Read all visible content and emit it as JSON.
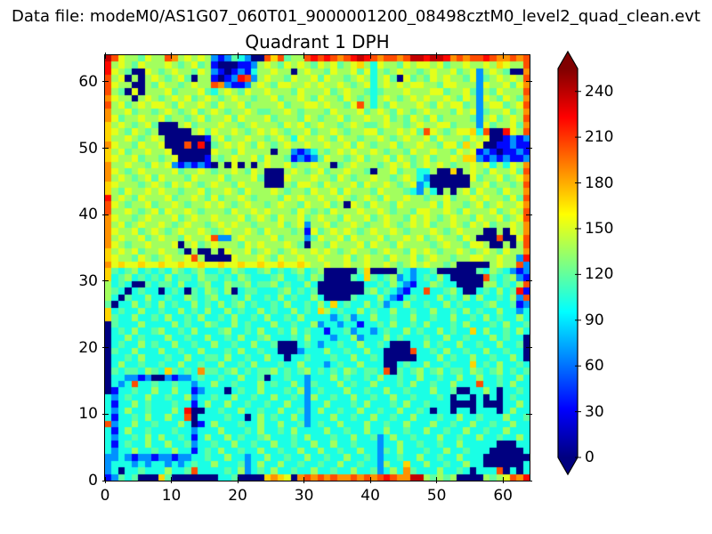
{
  "figure": {
    "data_file_label": "Data file: modeM0/AS1G07_060T01_9000001200_08498cztM0_level2_quad_clean.evt",
    "background": "#ffffff",
    "text_color": "#000000"
  },
  "chart_data": {
    "type": "heatmap",
    "title": "Quadrant 1 DPH",
    "xlabel": "",
    "ylabel": "",
    "x_range": [
      0,
      64
    ],
    "y_range": [
      0,
      64
    ],
    "x_ticks": [
      0,
      10,
      20,
      30,
      40,
      50,
      60
    ],
    "y_ticks": [
      0,
      10,
      20,
      30,
      40,
      50,
      60
    ],
    "grid": false,
    "colormap": "jet",
    "value_range": [
      0,
      255
    ],
    "value_per_hex_digit": 17,
    "colorbar": {
      "ticks": [
        0,
        30,
        60,
        90,
        120,
        150,
        180,
        210,
        240
      ],
      "extend": "both",
      "under_color": "#000080",
      "over_color": "#800000"
    },
    "grid_hex_rows_top_to_bottom": [
      "ec9887988cb8989842476400cac788cdcdcbcdedcbccbceedeedbcbccdcbbcbc",
      "d8987988898789782000224898798987989789a86988798998978898898a988c",
      "d98700987898879842024268898808988798897968789887898897894898700b",
      "c89080898789708820 24dc489887988979887898689709787989887947898 98c",
      "c988008798878988cb4224898799889898898789689898998879988 84988979b",
      "c870908889788897689879889888798889789887678889888997889748 79888c",
      "b988089878989789878988788978898798879878689878989889879849 87987b",
      "c897898998798898798897888897889989887 9c8687988898798997848 99789c",
      "b889788789878978987889877889878887988897898798789888798947 88978b",
      "b978898897887897889798889788879878897889889787987978888748 97898c",
      "a898789700089788898878988879897898878987789887898899788849 78897b",
      "a987987800000897988987898987889788987889978898 97c987899a6c00d98c",
      "a889878980000002897889887898698898798878898789889798887989002424",
      "b98879889000c0d0789898798789889889889798788978898879 97a890022422",
      "a897889889000000988798888088424687898988987887988988798924202242",
      "a988978878900002878988979887242479887897889798789788 98aa42424224",
      "b889887989424242080908089889788988078988878989789898788989 68698b",
      "b987898888978898788987980008987897889887088978866800a08987 98897c",
      "b898789798887988897888970009888988798788988789864000000978 89789b",
      "a988878987989878988798880008799879888979889878946000000889 78878c",
      "a879889898878897889879888987887988979888798887648608089798 87988b",
      "d898798889788987978898788879898898898789879889887889788989 88797c",
      "c987889788987889898789887898879889780987988798888979887897 89889b",
      "c889878979889878887988989888798787988898898788799889879888 97898c",
      "b988789888978988988897898798897898879889789887989878988798 89789c",
      "b897898898789887898988788897894889788987889878989788987989 78898b",
      "b988978987898898789889879888782978989878988987888987898880 08098b",
      "b898897898879889c44898888978884798897988897889897898879800 0c009c",
      "b987889888908978988879898889870887988897988798888789887998 00808c",
      "a898978898870800809889789878988989878988789887989878898789 87988b",
      "a988798789889c800009888987988988988897898879889789887889 98 89884d",
      "b9a99a99a99a99a99a99a99a99a99a98898898898898789898878000008988c4",
      "a767867676876786676876678676786780 00007a000076466700000076876424",
      "a678676768677687767687666786676870000 76a767846467686000 00c767842",
      "8676007677686678668778677867668600000006676864266876600008 86768c",
      "87606766067607687680677666786767000000078676426 6c6678600676867d2",
      "8607668667668767866768667686766860000766686426766686768686 67684c",
      "7066867686766867686786766768667686a6766867466866766867666786 6724",
      "a676686676686768668676686766867 6a867668676686676686676867 6686646",
      "a766866768667686676866768667686666467466866766866766866768676686",
      "0766686666867668766867666866766846646626676866768666768666768667",
      "0676866786676866678667686676867662667466467668676686 766a68667686",
      "0668676668667668667686678666768666466846668676667668667666867660",
      "0676686766866766866766866700067646676686676000668676686676686670",
      "0766866686676686667686676600046668667668660000c66768667668667660",
      "0667686667668667768667668660667666766866760000066686766866766860",
      "0686676676686676686676866676686664676686660067668667666a67686676",
      "076776876a7676b7767867677867678676768767 76c076786786776876786767",
      "0664424004244676676686670667664666867667686676686676686686676686",
      "0646c66766766466866766686766864766686766866676866766866 6c6676866",
      "0266766866866246660676686667684676668667668667666866700668606676",
      "6467668667668466766866766866764866766866766866766676066060606766",
      "6266867666766268668667667668664668666768666768667666000060006686",
      "646866766686d0066766866766866746866766866766866760660660666 06866",
      "62667686 6866c06666766068676686466686676686676686667668667666 8667",
      "c46686676668602686667668668667467668666866766866686676686676 6866",
      "6268667666766466686667686676866668667668668667668667668667668666",
      "6466768686676268668676678666768666766866746866766686676686676686",
      "6267668668667466766866766866766866866766646686676676686666600066",
      "6466866766866267686676686676686686676686647686667668667666000006",
      "4464244244244667668664668667668667668667646676686676686660000000",
      "4666464664646766866674686686676676686676648 66a668667668660000006",
      "4606676668667c66667684676866766866766866746 86b766686676 0666c0606",
      "24767000a700000006670000aba90bcbcbcbbcbcbcdcbbee8787800008789cbd"
    ]
  },
  "icons": {}
}
